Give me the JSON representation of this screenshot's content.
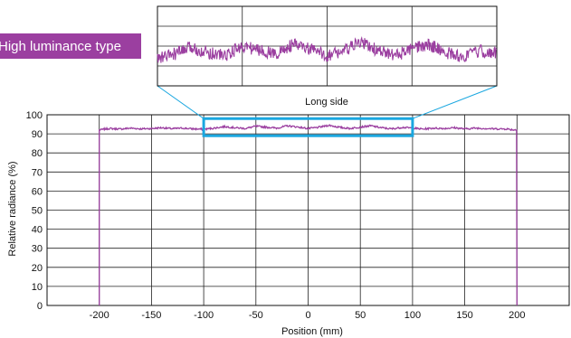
{
  "chart_data": {
    "type": "line",
    "title": "",
    "badge": "High luminance type",
    "inset_label": "Long side",
    "xlabel": "Position (mm)",
    "ylabel": "Relative radiance (%)",
    "xlim": [
      -250,
      250
    ],
    "ylim": [
      0,
      100
    ],
    "xticks": [
      -200,
      -150,
      -100,
      -50,
      0,
      50,
      100,
      150,
      200
    ],
    "yticks": [
      0,
      10,
      20,
      30,
      40,
      50,
      60,
      70,
      80,
      90,
      100
    ],
    "grid": true,
    "legend": "none",
    "series": [
      {
        "x": [
          -200,
          -200,
          -195,
          -190,
          -180,
          -170,
          -160,
          -150,
          -140,
          -130,
          -120,
          -110,
          -100,
          -90,
          -80,
          -70,
          -60,
          -50,
          -40,
          -30,
          -20,
          -10,
          0,
          10,
          20,
          30,
          40,
          50,
          60,
          70,
          80,
          90,
          100,
          110,
          120,
          130,
          140,
          150,
          160,
          170,
          180,
          190,
          195,
          200,
          200
        ],
        "values": [
          0,
          92,
          92.5,
          92.8,
          92.5,
          93,
          92.6,
          92.8,
          93.2,
          92.7,
          93,
          92.6,
          92.4,
          93,
          93.8,
          93.2,
          92.8,
          94,
          93.5,
          93,
          94.2,
          93.6,
          92.8,
          93.4,
          94.5,
          93.4,
          92.8,
          93.6,
          94.2,
          93.2,
          92.6,
          93.4,
          93,
          92.5,
          93,
          92.8,
          93.2,
          92.6,
          93,
          92.8,
          92.6,
          92.6,
          92.2,
          92,
          0
        ],
        "color": "#9B3FA0"
      }
    ],
    "zoom_window": {
      "x": [
        -100,
        100
      ],
      "y": [
        89,
        98
      ],
      "color": "#1AA7E0"
    }
  }
}
